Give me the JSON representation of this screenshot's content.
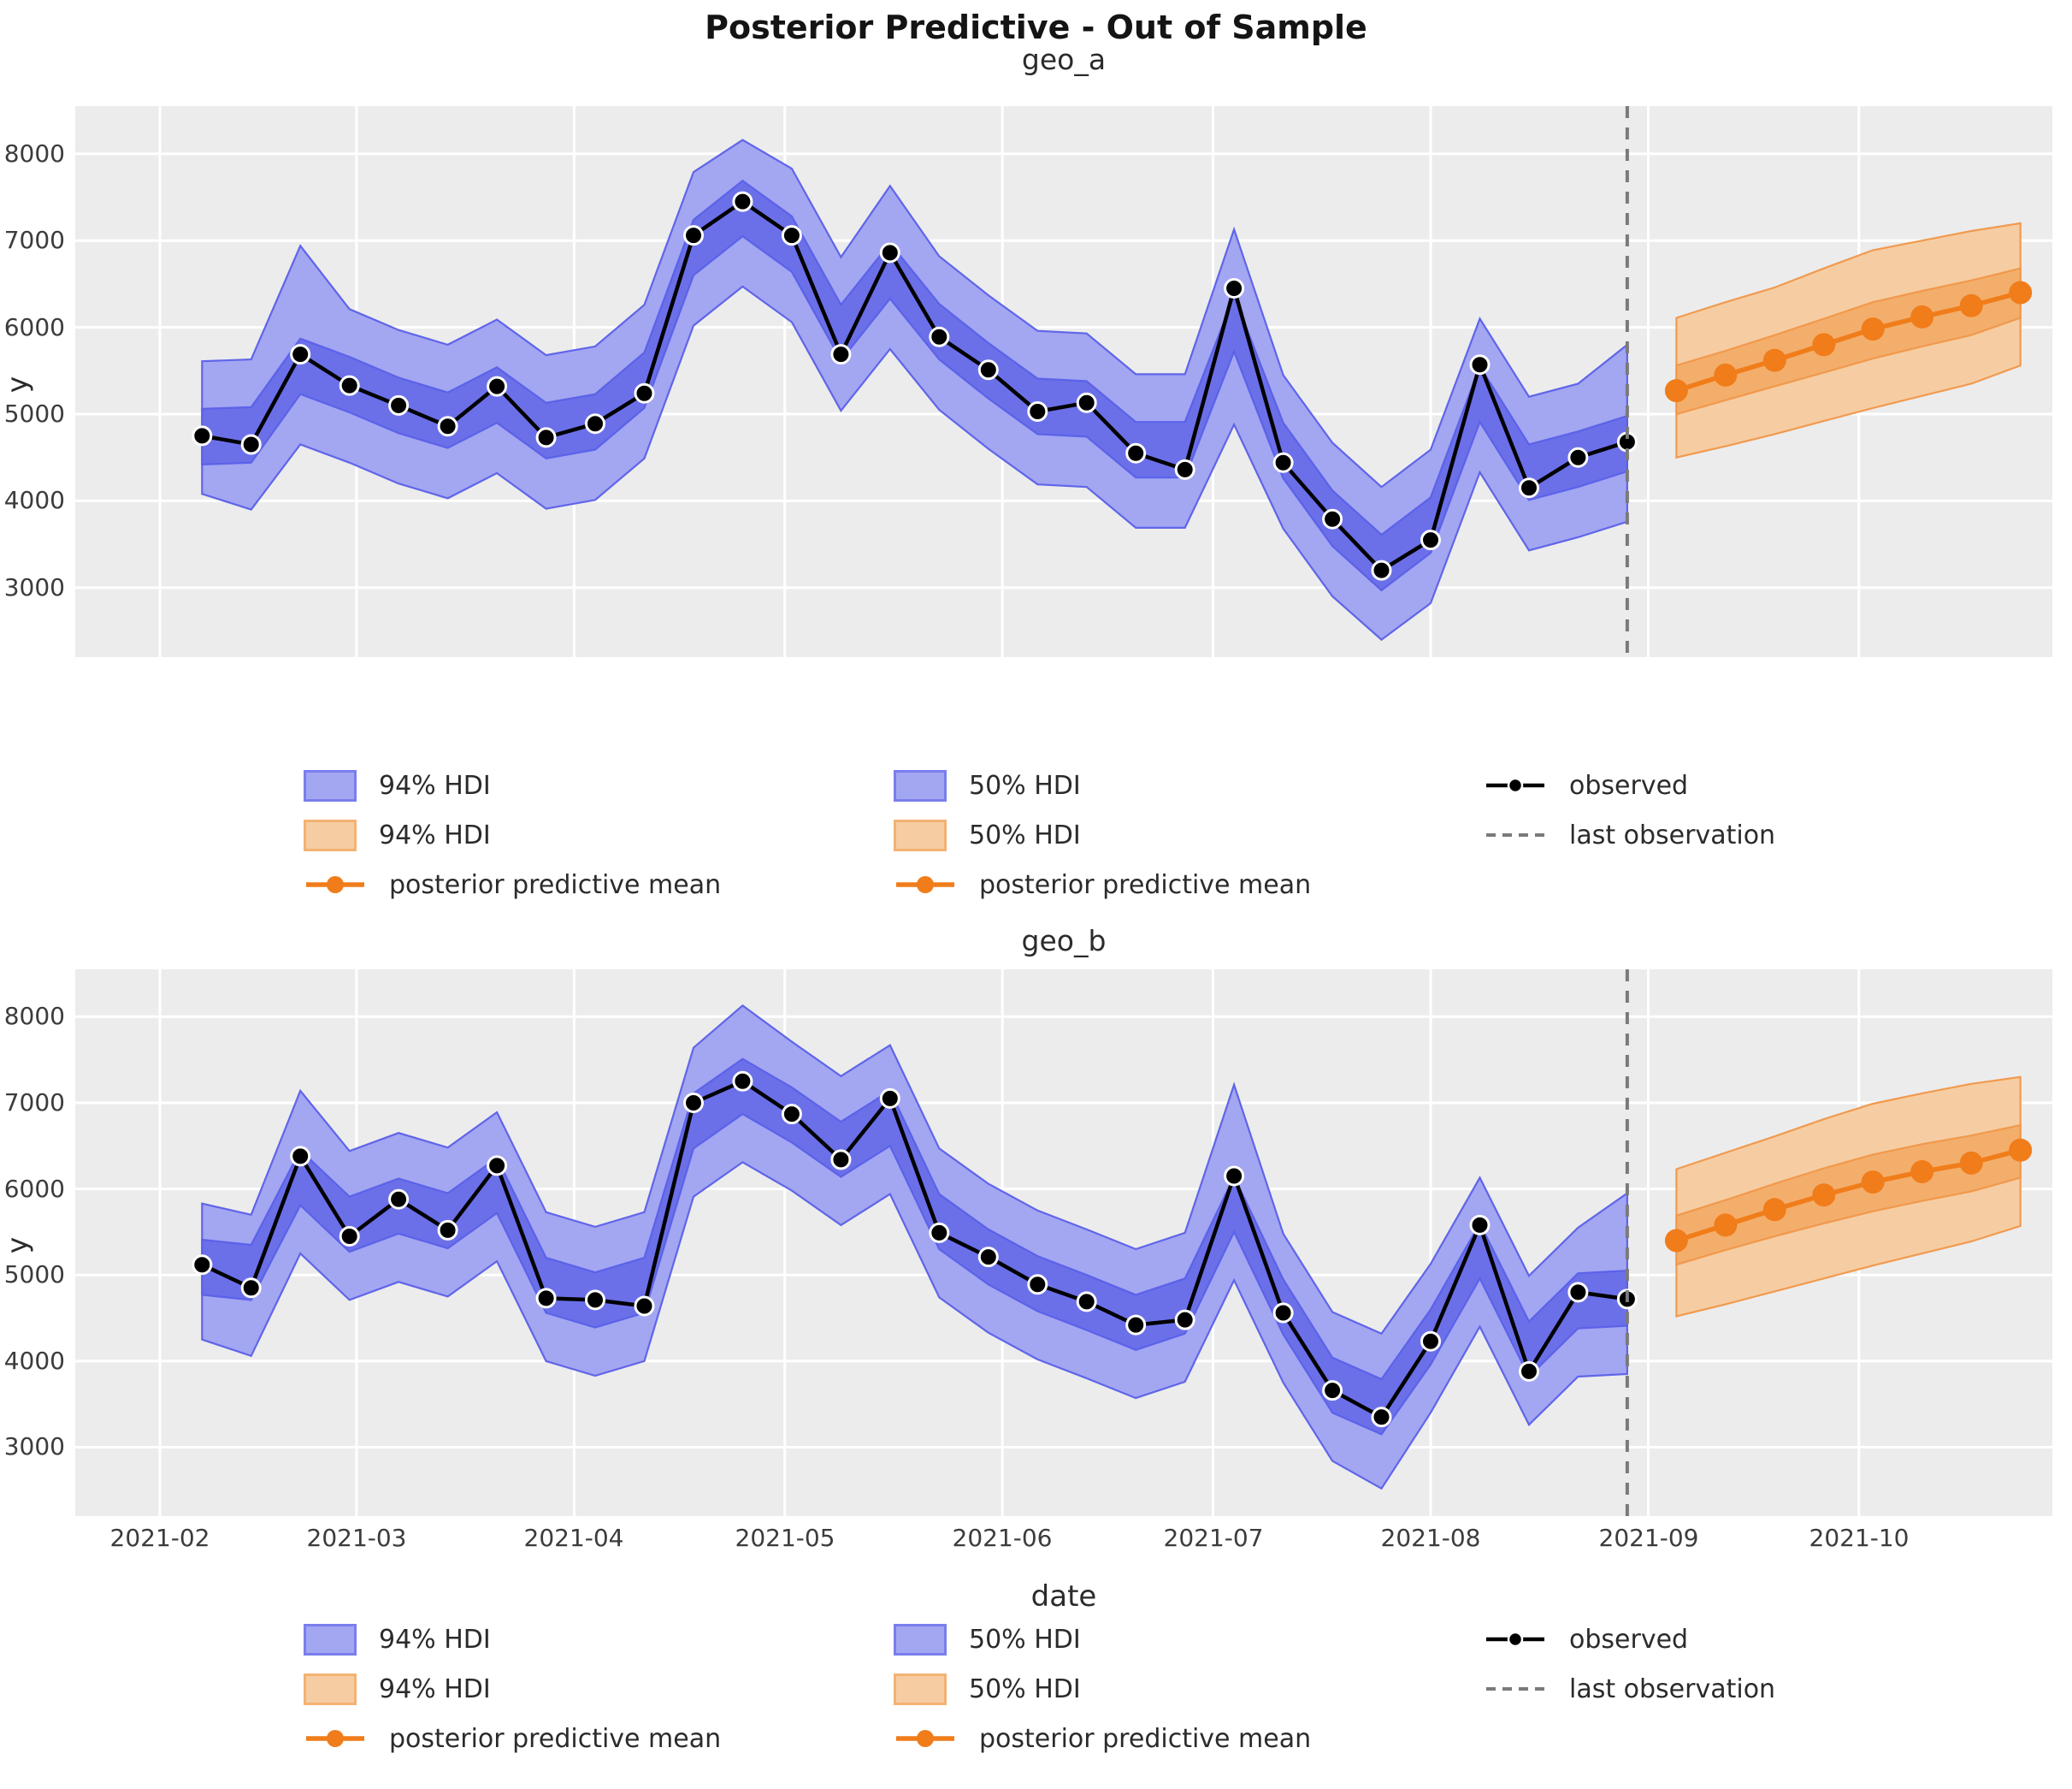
{
  "figure": {
    "title": "Posterior Predictive - Out of Sample",
    "xlabel": "date",
    "ylabel": "y"
  },
  "colors": {
    "axes_background": "#ececec",
    "grid": "#ffffff",
    "observed_line": "#000000",
    "blue_hdi94": "#a3a6f1",
    "blue_hdi50": "#6b70e9",
    "blue_edge": "#5a60e8",
    "orange_mean": "#f07d1a",
    "orange_hdi94": "#f6cda2",
    "orange_hdi50": "#f3ae6c",
    "orange_edge": "#f0974a",
    "last_observation_line": "#7a7a7a",
    "text": "#2b2b2b"
  },
  "legend": {
    "entries": [
      {
        "label": "94% HDI",
        "swatch": "patch-blue"
      },
      {
        "label": "94% HDI",
        "swatch": "patch-orange"
      },
      {
        "label": "posterior predictive mean",
        "swatch": "line-orange"
      },
      {
        "label": "50% HDI",
        "swatch": "patch-blue"
      },
      {
        "label": "50% HDI",
        "swatch": "patch-orange"
      },
      {
        "label": "posterior predictive mean",
        "swatch": "line-orange"
      },
      {
        "label": "observed",
        "swatch": "line-black"
      },
      {
        "label": "last observation",
        "swatch": "dash-gray"
      }
    ]
  },
  "chart_data": [
    {
      "type": "line",
      "title": "geo_a",
      "xlabel": "date",
      "ylabel": "y",
      "grid": true,
      "x_tick_labels": [
        "2021-02",
        "2021-03",
        "2021-04",
        "2021-05",
        "2021-06",
        "2021-07",
        "2021-08",
        "2021-09",
        "2021-10"
      ],
      "y_tick_labels": [
        3000,
        4000,
        5000,
        6000,
        7000,
        8000
      ],
      "ylim": [
        2200,
        8550
      ],
      "last_observation_date": "2021-08-29",
      "observed": {
        "dates": [
          "2021-02-07",
          "2021-02-14",
          "2021-02-21",
          "2021-02-28",
          "2021-03-07",
          "2021-03-14",
          "2021-03-21",
          "2021-03-28",
          "2021-04-04",
          "2021-04-11",
          "2021-04-18",
          "2021-04-25",
          "2021-05-02",
          "2021-05-09",
          "2021-05-16",
          "2021-05-23",
          "2021-05-30",
          "2021-06-06",
          "2021-06-13",
          "2021-06-20",
          "2021-06-27",
          "2021-07-04",
          "2021-07-11",
          "2021-07-18",
          "2021-07-25",
          "2021-08-01",
          "2021-08-08",
          "2021-08-15",
          "2021-08-22",
          "2021-08-29"
        ],
        "values": [
          4750,
          4650,
          5690,
          5330,
          5100,
          4860,
          5320,
          4730,
          4890,
          5240,
          7060,
          7450,
          7060,
          5690,
          6860,
          5890,
          5510,
          5030,
          5130,
          4550,
          4360,
          6450,
          4440,
          3790,
          3200,
          3550,
          5570,
          4150,
          4500,
          4680
        ]
      },
      "insample_hdi": {
        "hdi94_lower": [
          4080,
          3900,
          4650,
          4440,
          4200,
          4030,
          4320,
          3910,
          4010,
          4490,
          6020,
          6470,
          6060,
          5040,
          5750,
          5050,
          4600,
          4190,
          4160,
          3690,
          3690,
          4880,
          3680,
          2900,
          2400,
          2820,
          4330,
          3430,
          3580,
          3760
        ],
        "hdi94_upper": [
          5610,
          5630,
          6940,
          6210,
          5970,
          5800,
          6090,
          5680,
          5780,
          6260,
          7790,
          8160,
          7830,
          6810,
          7630,
          6820,
          6370,
          5960,
          5930,
          5460,
          5460,
          7130,
          5450,
          4670,
          4160,
          4590,
          6100,
          5200,
          5350,
          5800
        ],
        "hdi50_lower": [
          4420,
          4440,
          5230,
          5020,
          4780,
          4610,
          4900,
          4490,
          4590,
          5070,
          6600,
          7050,
          6640,
          5620,
          6330,
          5630,
          5180,
          4770,
          4740,
          4270,
          4270,
          5720,
          4260,
          3480,
          2970,
          3400,
          4910,
          4010,
          4160,
          4340
        ],
        "hdi50_upper": [
          5060,
          5080,
          5870,
          5660,
          5420,
          5250,
          5540,
          5130,
          5230,
          5710,
          7240,
          7690,
          7280,
          6260,
          6970,
          6270,
          5820,
          5410,
          5380,
          4910,
          4910,
          6360,
          4900,
          4120,
          3610,
          4040,
          5550,
          4650,
          4800,
          4980
        ]
      },
      "forecast": {
        "dates": [
          "2021-09-05",
          "2021-09-12",
          "2021-09-19",
          "2021-09-26",
          "2021-10-03",
          "2021-10-10",
          "2021-10-17",
          "2021-10-24"
        ],
        "mean": [
          5270,
          5450,
          5620,
          5800,
          5980,
          6120,
          6250,
          6400
        ],
        "hdi94_lower": [
          4500,
          4630,
          4770,
          4920,
          5070,
          5210,
          5350,
          5560
        ],
        "hdi94_upper": [
          6110,
          6290,
          6460,
          6680,
          6890,
          7000,
          7110,
          7200
        ],
        "hdi50_lower": [
          5000,
          5160,
          5320,
          5480,
          5640,
          5780,
          5910,
          6110
        ],
        "hdi50_upper": [
          5560,
          5730,
          5910,
          6100,
          6290,
          6420,
          6540,
          6680
        ]
      }
    },
    {
      "type": "line",
      "title": "geo_b",
      "xlabel": "date",
      "ylabel": "y",
      "grid": true,
      "x_tick_labels": [
        "2021-02",
        "2021-03",
        "2021-04",
        "2021-05",
        "2021-06",
        "2021-07",
        "2021-08",
        "2021-09",
        "2021-10"
      ],
      "y_tick_labels": [
        3000,
        4000,
        5000,
        6000,
        7000,
        8000
      ],
      "ylim": [
        2200,
        8550
      ],
      "last_observation_date": "2021-08-29",
      "observed": {
        "dates": [
          "2021-02-07",
          "2021-02-14",
          "2021-02-21",
          "2021-02-28",
          "2021-03-07",
          "2021-03-14",
          "2021-03-21",
          "2021-03-28",
          "2021-04-04",
          "2021-04-11",
          "2021-04-18",
          "2021-04-25",
          "2021-05-02",
          "2021-05-09",
          "2021-05-16",
          "2021-05-23",
          "2021-05-30",
          "2021-06-06",
          "2021-06-13",
          "2021-06-20",
          "2021-06-27",
          "2021-07-04",
          "2021-07-11",
          "2021-07-18",
          "2021-07-25",
          "2021-08-01",
          "2021-08-08",
          "2021-08-15",
          "2021-08-22",
          "2021-08-29"
        ],
        "values": [
          5120,
          4850,
          6380,
          5450,
          5880,
          5520,
          6270,
          4730,
          4710,
          4640,
          7000,
          7250,
          6870,
          6340,
          7050,
          5490,
          5210,
          4890,
          4690,
          4420,
          4480,
          6150,
          4560,
          3660,
          3350,
          4230,
          5580,
          3880,
          4800,
          4720
        ]
      },
      "insample_hdi": {
        "hdi94_lower": [
          4250,
          4060,
          5250,
          4710,
          4920,
          4750,
          5160,
          4000,
          3830,
          4000,
          5910,
          6310,
          5980,
          5580,
          5940,
          4740,
          4330,
          4020,
          3800,
          3570,
          3760,
          4940,
          3750,
          2840,
          2520,
          3400,
          4400,
          3260,
          3820,
          3850
        ],
        "hdi94_upper": [
          5830,
          5700,
          7140,
          6440,
          6650,
          6480,
          6890,
          5730,
          5560,
          5730,
          7640,
          8130,
          7710,
          7310,
          7670,
          6470,
          6060,
          5750,
          5530,
          5300,
          5490,
          7210,
          5480,
          4570,
          4320,
          5130,
          6130,
          4990,
          5550,
          5950
        ],
        "hdi50_lower": [
          4770,
          4710,
          5810,
          5270,
          5480,
          5310,
          5720,
          4560,
          4390,
          4560,
          6470,
          6870,
          6540,
          6140,
          6500,
          5300,
          4890,
          4580,
          4360,
          4130,
          4320,
          5500,
          4310,
          3400,
          3150,
          3960,
          4960,
          3820,
          4380,
          4410
        ],
        "hdi50_upper": [
          5410,
          5350,
          6450,
          5910,
          6120,
          5950,
          6360,
          5200,
          5030,
          5200,
          7110,
          7510,
          7180,
          6780,
          7140,
          5940,
          5530,
          5220,
          5000,
          4770,
          4960,
          6140,
          4950,
          4040,
          3790,
          4600,
          5600,
          4460,
          5020,
          5050
        ]
      },
      "forecast": {
        "dates": [
          "2021-09-05",
          "2021-09-12",
          "2021-09-19",
          "2021-09-26",
          "2021-10-03",
          "2021-10-10",
          "2021-10-17",
          "2021-10-24"
        ],
        "mean": [
          5400,
          5580,
          5760,
          5930,
          6080,
          6200,
          6300,
          6450
        ],
        "hdi94_lower": [
          4520,
          4660,
          4810,
          4960,
          5110,
          5250,
          5390,
          5570
        ],
        "hdi94_upper": [
          6230,
          6420,
          6610,
          6810,
          6990,
          7110,
          7220,
          7300
        ],
        "hdi50_lower": [
          5120,
          5290,
          5450,
          5600,
          5740,
          5860,
          5970,
          6130
        ],
        "hdi50_upper": [
          5690,
          5870,
          6060,
          6240,
          6400,
          6520,
          6620,
          6740
        ]
      }
    }
  ]
}
